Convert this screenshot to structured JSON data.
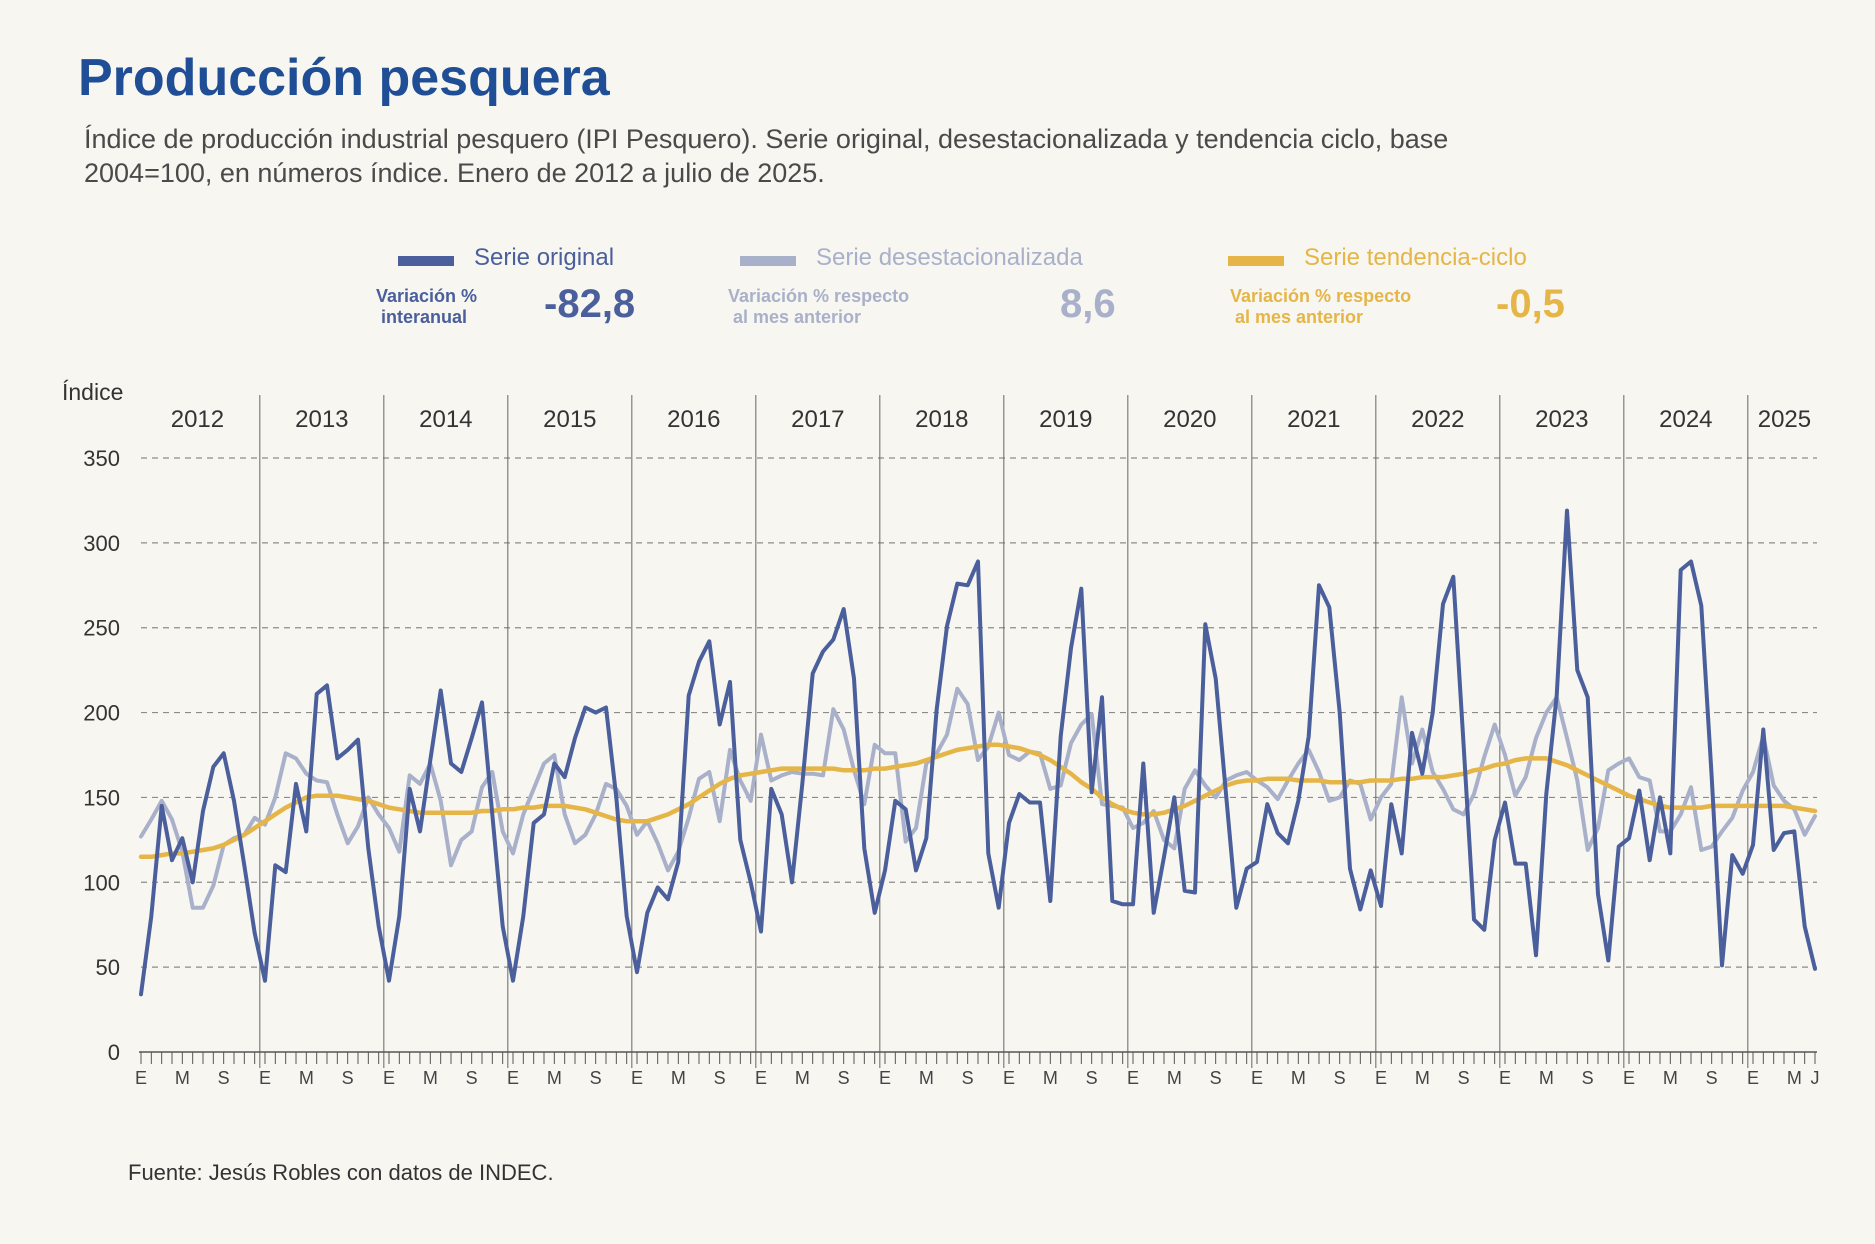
{
  "header": {
    "title": "Producción pesquera",
    "subtitle": "Índice de producción industrial pesquero (IPI Pesquero). Serie original, desestacionalizada y tendencia ciclo, base 2004=100, en números índice. Enero de 2012 a julio de 2025."
  },
  "legend": {
    "original": {
      "label": "Serie original",
      "var_label": "Variación %\n interanual",
      "var_value": "-82,8",
      "color": "#4a5f9b"
    },
    "desest": {
      "label": "Serie desestacionalizada",
      "var_label": "Variación % respecto\n al mes anterior",
      "var_value": "8,6",
      "color": "#a9b0ca"
    },
    "trend": {
      "label": "Serie tendencia-ciclo",
      "var_label": "Variación % respecto\n al mes anterior",
      "var_value": "-0,5",
      "color": "#e5b547"
    }
  },
  "footer": {
    "source": "Fuente: Jesús Robles con datos de INDEC."
  },
  "chart_data": {
    "type": "line",
    "ylabel": "Índice",
    "ylim": [
      0,
      350
    ],
    "yticks": [
      0,
      50,
      100,
      150,
      200,
      250,
      300,
      350
    ],
    "grid": true,
    "years": [
      "2012",
      "2013",
      "2014",
      "2015",
      "2016",
      "2017",
      "2018",
      "2019",
      "2020",
      "2021",
      "2022",
      "2023",
      "2024",
      "2025"
    ],
    "month_tick_labels": {
      "0": "E",
      "4": "M",
      "8": "S"
    },
    "last_month_label": "J",
    "x_start": "2012-01",
    "x_end": "2025-07",
    "series": [
      {
        "name": "Serie original",
        "color": "#4a5f9b",
        "values": [
          34,
          80,
          145,
          113,
          126,
          100,
          142,
          168,
          176,
          148,
          110,
          70,
          42,
          110,
          106,
          158,
          130,
          211,
          216,
          173,
          178,
          184,
          120,
          74,
          42,
          80,
          155,
          130,
          172,
          213,
          170,
          165,
          185,
          206,
          140,
          74,
          42,
          80,
          135,
          140,
          170,
          162,
          185,
          203,
          200,
          203,
          150,
          80,
          47,
          82,
          97,
          90,
          112,
          210,
          230,
          242,
          193,
          218,
          125,
          100,
          71,
          155,
          140,
          100,
          158,
          223,
          236,
          243,
          261,
          220,
          120,
          82,
          107,
          148,
          143,
          107,
          126,
          202,
          251,
          276,
          275,
          289,
          117,
          85,
          135,
          152,
          147,
          147,
          89,
          186,
          238,
          273,
          153,
          209,
          89,
          87,
          87,
          170,
          82,
          115,
          150,
          95,
          94,
          252,
          220,
          152,
          85,
          108,
          112,
          146,
          129,
          123,
          148,
          186,
          275,
          262,
          200,
          108,
          84,
          107,
          86,
          146,
          117,
          188,
          164,
          200,
          264,
          280,
          180,
          78,
          72,
          125,
          147,
          111,
          111,
          57,
          152,
          210,
          319,
          225,
          209,
          93,
          54,
          121,
          126,
          154,
          113,
          150,
          117,
          284,
          289,
          263,
          162,
          51,
          116,
          105,
          122,
          190,
          119,
          129,
          130,
          74,
          49
        ]
      },
      {
        "name": "Serie desestacionalizada",
        "color": "#a9b0ca",
        "values": [
          127,
          137,
          148,
          137,
          118,
          85,
          85,
          98,
          122,
          126,
          128,
          138,
          134,
          150,
          176,
          173,
          164,
          160,
          159,
          140,
          123,
          133,
          150,
          140,
          132,
          118,
          163,
          158,
          170,
          148,
          110,
          125,
          130,
          156,
          165,
          130,
          117,
          140,
          155,
          170,
          175,
          140,
          123,
          128,
          140,
          158,
          155,
          145,
          128,
          136,
          123,
          107,
          118,
          138,
          161,
          165,
          136,
          178,
          160,
          148,
          187,
          160,
          163,
          165,
          164,
          164,
          163,
          202,
          190,
          166,
          146,
          181,
          176,
          176,
          124,
          132,
          170,
          176,
          187,
          214,
          205,
          172,
          180,
          200,
          175,
          172,
          177,
          176,
          155,
          157,
          182,
          193,
          199,
          146,
          145,
          144,
          132,
          135,
          142,
          125,
          120,
          155,
          166,
          157,
          150,
          160,
          163,
          165,
          160,
          156,
          149,
          160,
          170,
          178,
          165,
          148,
          150,
          160,
          158,
          137,
          150,
          158,
          209,
          170,
          190,
          165,
          155,
          143,
          140,
          152,
          174,
          193,
          175,
          151,
          162,
          185,
          200,
          209,
          185,
          160,
          119,
          132,
          166,
          170,
          173,
          162,
          160,
          130,
          130,
          140,
          156,
          119,
          121,
          130,
          138,
          154,
          165,
          186,
          157,
          148,
          143,
          128,
          139
        ]
      },
      {
        "name": "Serie tendencia-ciclo",
        "color": "#e5b547",
        "values": [
          115,
          115,
          116,
          117,
          117,
          118,
          119,
          120,
          122,
          125,
          128,
          132,
          136,
          140,
          144,
          147,
          150,
          151,
          151,
          151,
          150,
          149,
          148,
          146,
          144,
          143,
          142,
          141,
          141,
          141,
          141,
          141,
          141,
          142,
          142,
          143,
          143,
          144,
          144,
          145,
          145,
          145,
          144,
          143,
          141,
          139,
          137,
          136,
          136,
          136,
          138,
          140,
          143,
          146,
          150,
          154,
          158,
          161,
          163,
          164,
          165,
          166,
          167,
          167,
          167,
          167,
          167,
          167,
          166,
          166,
          166,
          167,
          167,
          168,
          169,
          170,
          172,
          174,
          176,
          178,
          179,
          180,
          181,
          181,
          180,
          179,
          177,
          175,
          172,
          168,
          164,
          159,
          155,
          150,
          146,
          143,
          141,
          140,
          140,
          141,
          143,
          145,
          148,
          151,
          154,
          157,
          159,
          160,
          160,
          161,
          161,
          161,
          160,
          160,
          160,
          159,
          159,
          159,
          159,
          160,
          160,
          160,
          161,
          161,
          162,
          162,
          162,
          163,
          164,
          166,
          167,
          169,
          170,
          172,
          173,
          173,
          173,
          171,
          169,
          166,
          163,
          160,
          157,
          154,
          151,
          149,
          147,
          145,
          144,
          144,
          144,
          144,
          145,
          145,
          145,
          145,
          145,
          145,
          145,
          145,
          144,
          143,
          142
        ]
      }
    ]
  }
}
